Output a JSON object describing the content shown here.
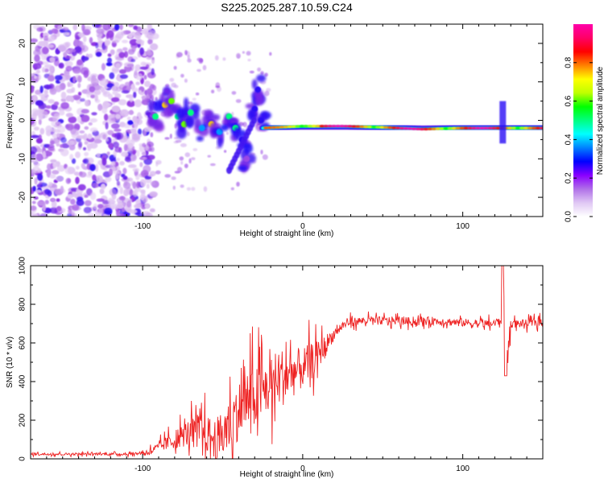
{
  "title": "S225.2025.287.10.59.C24",
  "chart_data": [
    {
      "type": "heatmap",
      "name": "spectrogram",
      "xlabel": "Height of straight line (km)",
      "ylabel": "Frequency (Hz)",
      "xlim": [
        -170,
        150
      ],
      "ylim": [
        -25,
        25
      ],
      "xticks": [
        -100,
        0,
        100
      ],
      "yticks": [
        -20,
        -10,
        0,
        10,
        20
      ],
      "xtick_labels": [
        "-100",
        "0",
        "100"
      ],
      "ytick_labels": [
        "-20",
        "-10",
        "0",
        "10",
        "20"
      ],
      "colorbar": {
        "label": "Normalized spectral amplitude",
        "range": [
          0,
          1
        ],
        "ticks": [
          0.0,
          0.2,
          0.4,
          0.6,
          0.8
        ],
        "tick_labels": [
          "0.0",
          "0.2",
          "0.4",
          "0.6",
          "0.8"
        ],
        "colormap": [
          "#ffffff",
          "#d8b8f0",
          "#8a2be2",
          "#0000ff",
          "#00ffff",
          "#00ff00",
          "#ffff00",
          "#ff8000",
          "#ff0000",
          "#ff00aa"
        ]
      },
      "description_ridge": {
        "noise_region_x": [
          -170,
          -100
        ],
        "scattered_region_x": [
          -100,
          -20
        ],
        "tone_region_x": [
          -25,
          150
        ],
        "tone_frequency": [
          [
            -25,
            -2
          ],
          [
            0,
            -1.5
          ],
          [
            25,
            -1.5
          ],
          [
            50,
            -1.8
          ],
          [
            75,
            -2.3
          ],
          [
            100,
            -2
          ],
          [
            125,
            -2
          ],
          [
            150,
            -2
          ]
        ],
        "blobs": [
          [
            -92,
            1,
            0.5
          ],
          [
            -86,
            4,
            0.7
          ],
          [
            -82,
            5,
            0.6
          ],
          [
            -78,
            1,
            0.5
          ],
          [
            -74,
            -1,
            0.6
          ],
          [
            -70,
            2,
            0.5
          ],
          [
            -63,
            -2,
            0.4
          ],
          [
            -57,
            -1,
            0.7
          ],
          [
            -52,
            -3,
            0.4
          ],
          [
            -46,
            1,
            0.5
          ],
          [
            -42,
            -2,
            0.5
          ],
          [
            -38,
            -5,
            0.3
          ],
          [
            -35,
            -10,
            0.2
          ],
          [
            -30,
            3,
            0.3
          ],
          [
            -28,
            8,
            0.3
          ],
          [
            -26,
            0,
            0.3
          ]
        ]
      }
    },
    {
      "type": "line",
      "name": "snr",
      "xlabel": "Height of straight line (km)",
      "ylabel": "SNR (10 * v/v)",
      "xlim": [
        -170,
        150
      ],
      "ylim": [
        0,
        1000
      ],
      "xticks": [
        -100,
        0,
        100
      ],
      "yticks": [
        0,
        200,
        400,
        600,
        800,
        1000
      ],
      "xtick_labels": [
        "-100",
        "0",
        "100"
      ],
      "ytick_labels": [
        "0",
        "200",
        "400",
        "600",
        "800",
        "1000"
      ],
      "line_color": "#ee2222",
      "series": [
        {
          "name": "SNR",
          "x": [
            -170,
            -160,
            -150,
            -140,
            -130,
            -120,
            -110,
            -100,
            -95,
            -90,
            -85,
            -80,
            -75,
            -70,
            -65,
            -60,
            -55,
            -50,
            -45,
            -40,
            -35,
            -30,
            -25,
            -20,
            -15,
            -10,
            -5,
            0,
            5,
            10,
            15,
            20,
            25,
            30,
            40,
            50,
            60,
            70,
            80,
            90,
            100,
            110,
            120,
            124,
            126,
            128,
            130,
            140,
            150
          ],
          "values": [
            25,
            25,
            25,
            25,
            25,
            25,
            25,
            30,
            40,
            60,
            80,
            100,
            120,
            140,
            150,
            130,
            100,
            120,
            180,
            250,
            300,
            320,
            350,
            380,
            420,
            430,
            450,
            470,
            500,
            540,
            600,
            650,
            690,
            710,
            715,
            715,
            715,
            710,
            715,
            710,
            705,
            700,
            700,
            720,
            900,
            500,
            700,
            700,
            710
          ],
          "noise_amplitude": [
            10,
            10,
            10,
            10,
            10,
            10,
            10,
            15,
            30,
            40,
            60,
            80,
            100,
            120,
            140,
            160,
            180,
            200,
            220,
            250,
            270,
            280,
            250,
            250,
            260,
            240,
            200,
            180,
            160,
            120,
            80,
            50,
            40,
            35,
            35,
            35,
            35,
            35,
            35,
            35,
            35,
            35,
            35,
            40,
            150,
            150,
            35,
            35,
            35
          ]
        }
      ]
    }
  ]
}
